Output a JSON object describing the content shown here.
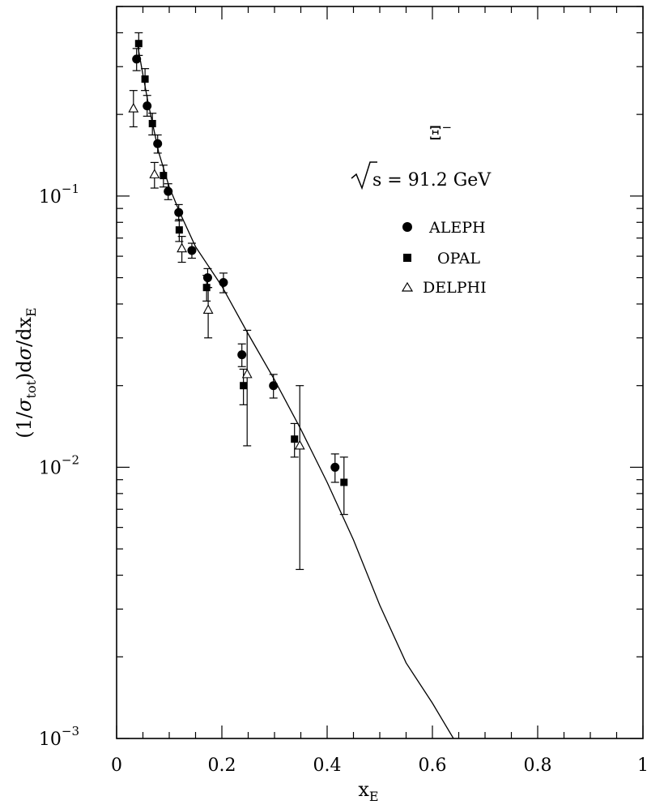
{
  "chart_data": {
    "type": "scatter",
    "title": "",
    "xlabel": "x",
    "xlabel_sub": "E",
    "ylabel_parts": {
      "p1": "(1/",
      "sigma": "σ",
      "tot": "tot",
      "p2": ")d",
      "p3": "/dx",
      "sub_e": "E"
    },
    "xlim": [
      0,
      1
    ],
    "ylim": [
      0.001,
      0.5
    ],
    "yscale": "log",
    "x_ticks": [
      {
        "v": 0,
        "label": "0"
      },
      {
        "v": 0.2,
        "label": "0.2"
      },
      {
        "v": 0.4,
        "label": "0.4"
      },
      {
        "v": 0.6,
        "label": "0.6"
      },
      {
        "v": 0.8,
        "label": "0.8"
      },
      {
        "v": 1,
        "label": "1"
      }
    ],
    "y_ticks": [
      {
        "v": 0.001,
        "exp": "−3"
      },
      {
        "v": 0.01,
        "exp": "−2"
      },
      {
        "v": 0.1,
        "exp": "−1"
      }
    ],
    "y_tick_base": "10",
    "annotations": {
      "particle": "Ξ",
      "particle_sup": "−",
      "energy": "s = 91.2 GeV"
    },
    "legend_position": "top-right",
    "series": [
      {
        "name": "ALEPH",
        "marker": "circle",
        "points": [
          {
            "x": 0.038,
            "y": 0.32,
            "lo": 0.29,
            "hi": 0.35
          },
          {
            "x": 0.058,
            "y": 0.215,
            "lo": 0.197,
            "hi": 0.235
          },
          {
            "x": 0.078,
            "y": 0.156,
            "lo": 0.144,
            "hi": 0.168
          },
          {
            "x": 0.098,
            "y": 0.104,
            "lo": 0.097,
            "hi": 0.111
          },
          {
            "x": 0.118,
            "y": 0.087,
            "lo": 0.081,
            "hi": 0.093
          },
          {
            "x": 0.143,
            "y": 0.063,
            "lo": 0.059,
            "hi": 0.067
          },
          {
            "x": 0.173,
            "y": 0.05,
            "lo": 0.046,
            "hi": 0.054
          },
          {
            "x": 0.203,
            "y": 0.048,
            "lo": 0.044,
            "hi": 0.052
          },
          {
            "x": 0.238,
            "y": 0.026,
            "lo": 0.0235,
            "hi": 0.0285
          },
          {
            "x": 0.298,
            "y": 0.02,
            "lo": 0.018,
            "hi": 0.022
          },
          {
            "x": 0.415,
            "y": 0.01,
            "lo": 0.0088,
            "hi": 0.0112
          }
        ]
      },
      {
        "name": "OPAL",
        "marker": "square",
        "points": [
          {
            "x": 0.042,
            "y": 0.365,
            "lo": 0.33,
            "hi": 0.4
          },
          {
            "x": 0.054,
            "y": 0.27,
            "lo": 0.245,
            "hi": 0.295
          },
          {
            "x": 0.068,
            "y": 0.185,
            "lo": 0.168,
            "hi": 0.202
          },
          {
            "x": 0.089,
            "y": 0.119,
            "lo": 0.108,
            "hi": 0.13
          },
          {
            "x": 0.119,
            "y": 0.075,
            "lo": 0.068,
            "hi": 0.082
          },
          {
            "x": 0.171,
            "y": 0.046,
            "lo": 0.041,
            "hi": 0.051
          },
          {
            "x": 0.241,
            "y": 0.02,
            "lo": 0.017,
            "hi": 0.023
          },
          {
            "x": 0.338,
            "y": 0.0127,
            "lo": 0.0109,
            "hi": 0.0145
          },
          {
            "x": 0.432,
            "y": 0.0088,
            "lo": 0.0067,
            "hi": 0.0109
          }
        ]
      },
      {
        "name": "DELPHI",
        "marker": "triangle",
        "points": [
          {
            "x": 0.032,
            "y": 0.21,
            "lo": 0.18,
            "hi": 0.245
          },
          {
            "x": 0.072,
            "y": 0.12,
            "lo": 0.107,
            "hi": 0.133
          },
          {
            "x": 0.124,
            "y": 0.064,
            "lo": 0.057,
            "hi": 0.071
          },
          {
            "x": 0.174,
            "y": 0.038,
            "lo": 0.03,
            "hi": 0.046
          },
          {
            "x": 0.248,
            "y": 0.022,
            "lo": 0.012,
            "hi": 0.032
          },
          {
            "x": 0.348,
            "y": 0.012,
            "lo": 0.0042,
            "hi": 0.02
          }
        ]
      }
    ],
    "curve": {
      "points": [
        [
          0.04,
          0.36
        ],
        [
          0.05,
          0.28
        ],
        [
          0.06,
          0.22
        ],
        [
          0.08,
          0.145
        ],
        [
          0.1,
          0.108
        ],
        [
          0.12,
          0.087
        ],
        [
          0.15,
          0.065
        ],
        [
          0.2,
          0.0465
        ],
        [
          0.25,
          0.031
        ],
        [
          0.3,
          0.021
        ],
        [
          0.35,
          0.0138
        ],
        [
          0.4,
          0.0088
        ],
        [
          0.45,
          0.0054
        ],
        [
          0.5,
          0.0031
        ],
        [
          0.55,
          0.0019
        ],
        [
          0.6,
          0.00135
        ],
        [
          0.64,
          0.001
        ]
      ]
    }
  }
}
